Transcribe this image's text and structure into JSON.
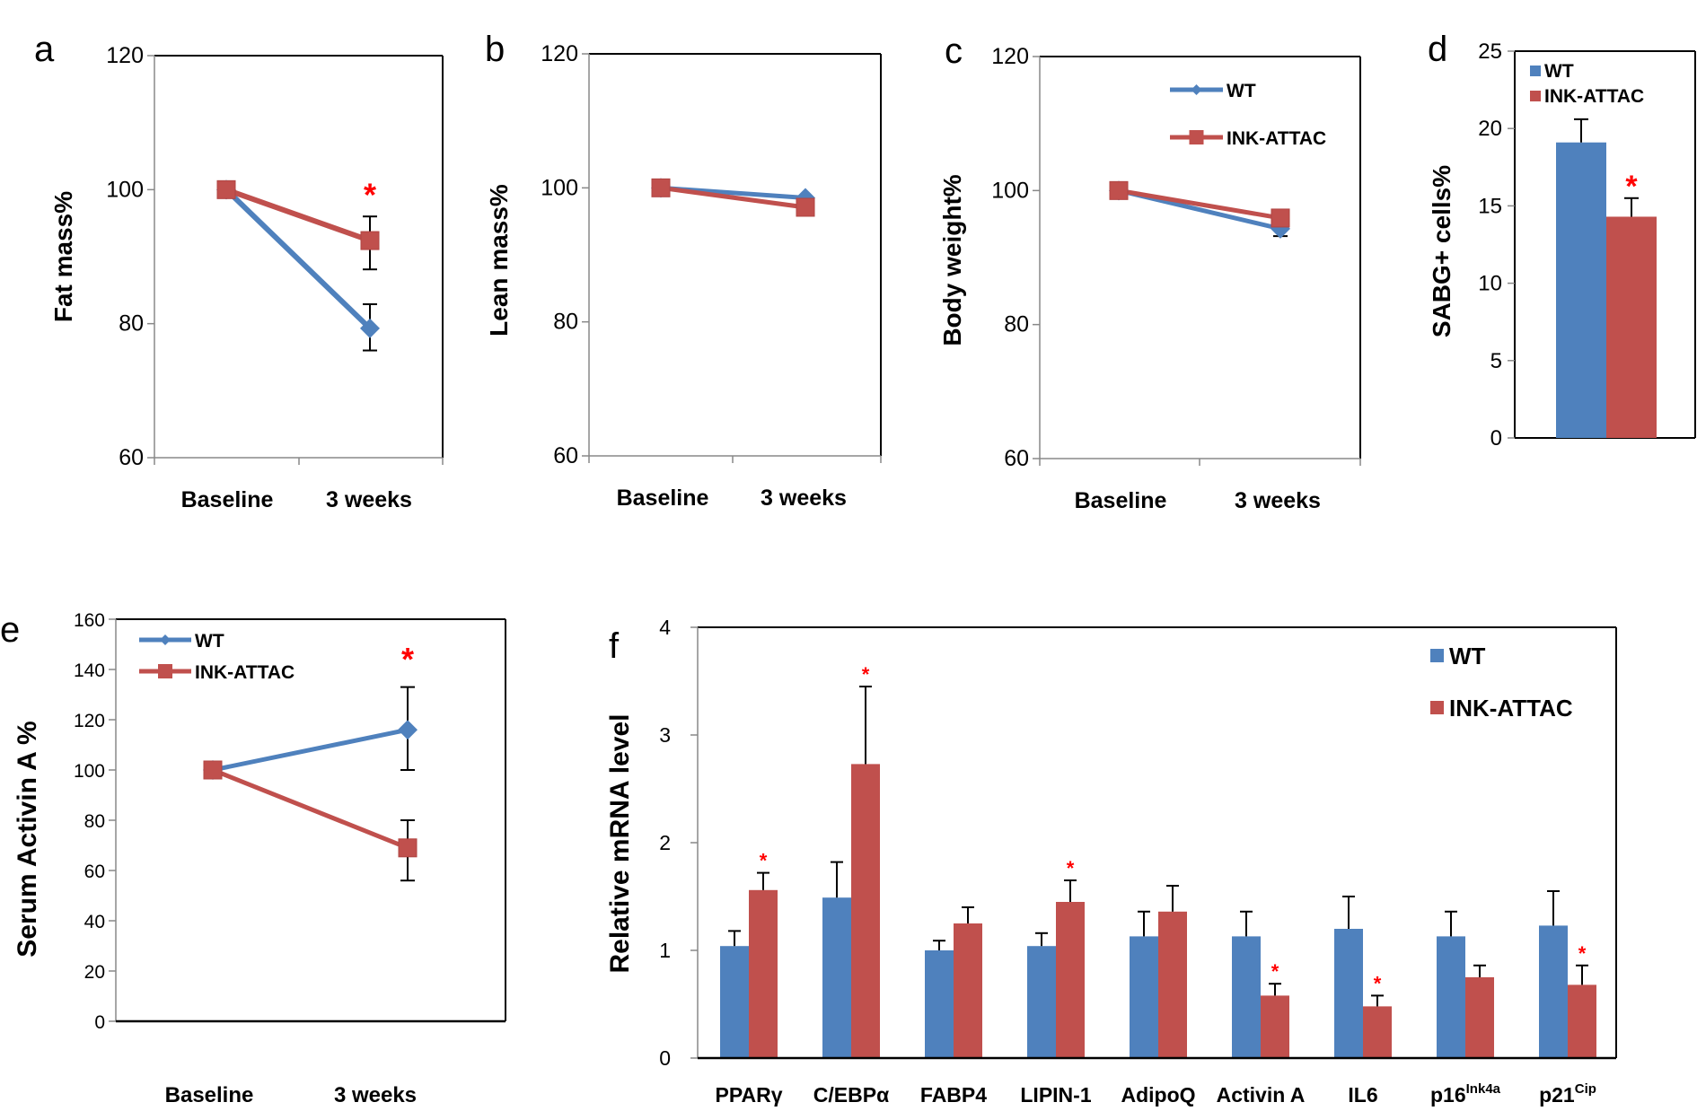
{
  "colors": {
    "wt": "#4F81BD",
    "ink": "#C0504D",
    "star": "#FF0000"
  },
  "chart_data": [
    {
      "panel": "a",
      "type": "line",
      "ylabel": "Fat mass%",
      "categories": [
        "Baseline",
        "3 weeks"
      ],
      "ylim": [
        60,
        120
      ],
      "yticks": [
        60,
        80,
        100,
        120
      ],
      "series": [
        {
          "name": "WT",
          "marker": "diamond",
          "values": [
            100,
            79.3
          ],
          "error_low": [
            null,
            76.0
          ],
          "error_high": [
            null,
            82.9
          ]
        },
        {
          "name": "INK-ATTAC",
          "marker": "square",
          "values": [
            100,
            92.4
          ],
          "error_low": [
            null,
            88.1
          ],
          "error_high": [
            null,
            96.0
          ]
        }
      ],
      "annotations": [
        {
          "text": "*",
          "category": "3 weeks",
          "y": 100
        }
      ],
      "legend": null
    },
    {
      "panel": "b",
      "type": "line",
      "ylabel": "Lean mass%",
      "categories": [
        "Baseline",
        "3 weeks"
      ],
      "ylim": [
        60,
        120
      ],
      "yticks": [
        60,
        80,
        100,
        120
      ],
      "series": [
        {
          "name": "WT",
          "marker": "diamond",
          "values": [
            100,
            98.5
          ],
          "error_low": [
            null,
            null
          ],
          "error_high": [
            null,
            null
          ]
        },
        {
          "name": "INK-ATTAC",
          "marker": "square",
          "values": [
            100,
            97.1
          ],
          "error_low": [
            null,
            null
          ],
          "error_high": [
            null,
            null
          ]
        }
      ],
      "annotations": [],
      "legend": null
    },
    {
      "panel": "c",
      "type": "line",
      "ylabel": "Body weight%",
      "categories": [
        "Baseline",
        "3 weeks"
      ],
      "ylim": [
        60,
        120
      ],
      "yticks": [
        60,
        80,
        100,
        120
      ],
      "series": [
        {
          "name": "WT",
          "marker": "diamond",
          "values": [
            100,
            94.3
          ],
          "error_low": [
            null,
            93.2
          ],
          "error_high": [
            null,
            95.2
          ]
        },
        {
          "name": "INK-ATTAC",
          "marker": "square",
          "values": [
            100,
            95.9
          ],
          "error_low": [
            null,
            null
          ],
          "error_high": [
            null,
            null
          ]
        }
      ],
      "annotations": [],
      "legend": "top-right"
    },
    {
      "panel": "d",
      "type": "bar",
      "ylabel": "SABG+ cells%",
      "categories": [
        ""
      ],
      "ylim": [
        0,
        25
      ],
      "yticks": [
        0,
        5,
        10,
        15,
        20,
        25
      ],
      "series": [
        {
          "name": "WT",
          "values": [
            19.1
          ],
          "error_high": [
            20.6
          ]
        },
        {
          "name": "INK-ATTAC",
          "values": [
            14.3
          ],
          "error_high": [
            15.5
          ]
        }
      ],
      "annotations": [
        {
          "text": "*",
          "series": "INK-ATTAC",
          "category_index": 0
        }
      ],
      "legend": "top-left"
    },
    {
      "panel": "e",
      "type": "line",
      "ylabel": "Serum Activin A %",
      "categories": [
        "Baseline",
        "3 weeks"
      ],
      "ylim": [
        0,
        160
      ],
      "yticks": [
        0,
        20,
        40,
        60,
        80,
        100,
        120,
        140,
        160
      ],
      "series": [
        {
          "name": "WT",
          "marker": "diamond",
          "values": [
            100,
            116
          ],
          "error_low": [
            null,
            100
          ],
          "error_high": [
            null,
            133
          ]
        },
        {
          "name": "INK-ATTAC",
          "marker": "square",
          "values": [
            100,
            69
          ],
          "error_low": [
            null,
            56
          ],
          "error_high": [
            null,
            80
          ]
        }
      ],
      "annotations": [
        {
          "text": "*",
          "category": "3 weeks",
          "y": 146
        }
      ],
      "legend": "top-left"
    },
    {
      "panel": "f",
      "type": "bar",
      "ylabel": "Relative mRNA level",
      "categories": [
        "PPARγ",
        "C/EBPα",
        "FABP4",
        "LIPIN-1",
        "AdipoQ",
        "Activin A",
        "IL6",
        "p16",
        "p21"
      ],
      "category_superscripts": [
        "",
        "",
        "",
        "",
        "",
        "",
        "",
        "Ink4a",
        "Cip"
      ],
      "ylim": [
        0,
        4
      ],
      "yticks": [
        0,
        1,
        2,
        3,
        4
      ],
      "series": [
        {
          "name": "WT",
          "values": [
            1.04,
            1.49,
            1.0,
            1.04,
            1.13,
            1.13,
            1.2,
            1.13,
            1.23
          ],
          "error_high": [
            1.18,
            1.82,
            1.09,
            1.16,
            1.36,
            1.36,
            1.5,
            1.36,
            1.55
          ]
        },
        {
          "name": "INK-ATTAC",
          "values": [
            1.56,
            2.73,
            1.25,
            1.45,
            1.36,
            0.58,
            0.48,
            0.75,
            0.68
          ],
          "error_high": [
            1.72,
            3.45,
            1.4,
            1.65,
            1.6,
            0.69,
            0.58,
            0.86,
            0.86
          ]
        }
      ],
      "significant_ink": [
        true,
        true,
        false,
        true,
        false,
        true,
        true,
        false,
        true
      ],
      "legend": "top-right"
    }
  ]
}
